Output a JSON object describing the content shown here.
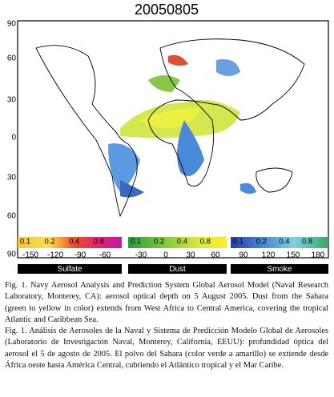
{
  "title": "20050805",
  "lat_labels": [
    "90",
    "60",
    "30",
    "0",
    "30",
    "60",
    "90"
  ],
  "colorbars": [
    {
      "name": "Sulfate",
      "ticks": [
        "0.1",
        "0.2",
        "0.4",
        "0.8"
      ],
      "lons": [
        "-150",
        "-120",
        "-90",
        "-60"
      ]
    },
    {
      "name": "Dust",
      "ticks": [
        "0.1",
        "0.2",
        "0.4",
        "0.8"
      ],
      "lons": [
        "-30",
        "0",
        "30",
        "60"
      ]
    },
    {
      "name": "Smoke",
      "ticks": [
        "0.1",
        "0.2",
        "0.4",
        "0.8"
      ],
      "lons": [
        "90",
        "120",
        "150",
        "180"
      ]
    }
  ],
  "caption": [
    "Fig. 1. Navy Aerosol Analysis and Prediction System Global Aerosol Model (Naval Research Laboratory, Monterey, CA): aerosol optical depth on 5 August 2005. Dust from the Sahara (green to yellow in color) extends from West Africa to Central America, covering the tropical Atlantic and Caribbean Sea.",
    "Fig. 1. Análisis de Aerosoles de la Naval y Sistema de Predicción Modelo Global de Aerosoles (Laboratorio de Investigación Naval, Monterey, California, EEUU): profundidad óptica del aerosol el 5 de agosto de 2005. El polvo del Sahara (color verde a amarillo) se extiende desde África oeste hasta América Central, cubriendo el Atlántico tropical y el Mar Caribe."
  ]
}
